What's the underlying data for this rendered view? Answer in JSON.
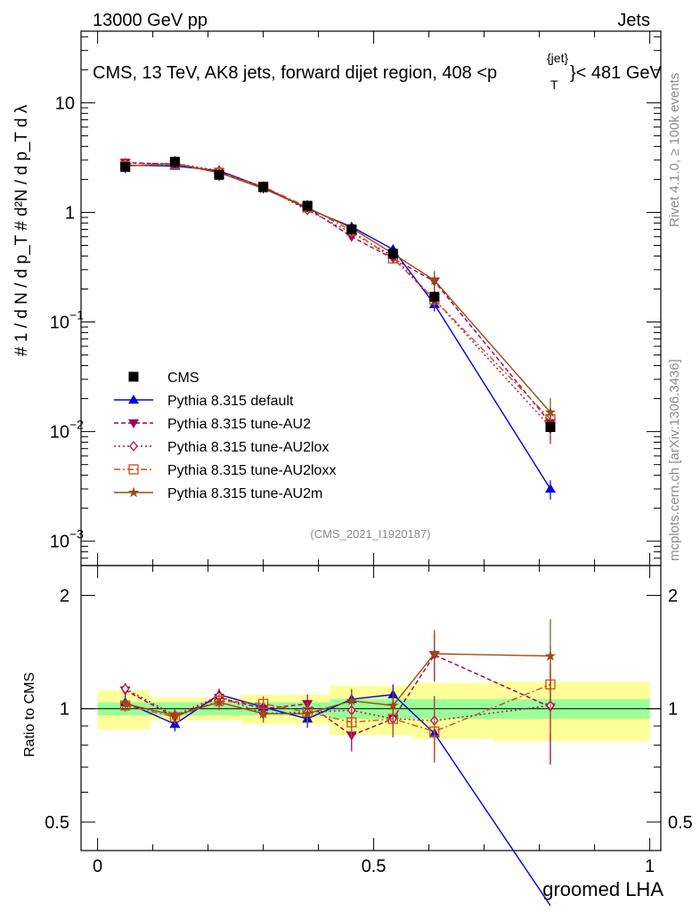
{
  "header": {
    "left": "13000 GeV pp",
    "right": "Jets"
  },
  "plot_title": "CMS, 13 TeV, AK8 jets, forward dijet region, 408 <p",
  "plot_title_sup": "{jet}",
  "plot_title_sub": "T",
  "plot_title_end": "}< 481 GeV",
  "side_right_top": "Rivet 4.1.0, ≥ 100k events",
  "side_right_bottom": "mcplots.cern.ch [arXiv:1306.3436]",
  "watermark": "(CMS_2021_I1920187)",
  "ylabel_top": "# 1 / d N / d p_T # d²N / d p_T d λ",
  "ylabel_bottom": "Ratio to CMS",
  "xlabel": "groomed LHA",
  "colors": {
    "cms": "#000000",
    "default": "#0000e0",
    "au2": "#a0005a",
    "au2lox": "#b0104a",
    "au2loxx": "#c8501e",
    "au2m": "#9c4a10",
    "band_inner": "#99ff99",
    "band_outer": "#ffff99"
  },
  "chart_data": {
    "type": "line",
    "x": [
      0.05,
      0.14,
      0.22,
      0.3,
      0.38,
      0.46,
      0.535,
      0.61,
      0.82
    ],
    "xlim": [
      -0.03,
      1.02
    ],
    "x_ticks": [
      "0",
      "0.5",
      "1"
    ],
    "main": {
      "yscale": "log",
      "ylim": [
        0.0006,
        45
      ],
      "y_ticks": [
        {
          "value": 0.001,
          "base": "10",
          "exp": "−3"
        },
        {
          "value": 0.01,
          "base": "10",
          "exp": "−2"
        },
        {
          "value": 0.1,
          "base": "10",
          "exp": "−1"
        },
        {
          "value": 1,
          "base": "1",
          "exp": ""
        },
        {
          "value": 10,
          "base": "10",
          "exp": ""
        }
      ]
    },
    "ratio": {
      "yscale": "log",
      "ylim": [
        0.42,
        2.4
      ],
      "y_ticks": [
        "0.5",
        "1",
        "2"
      ]
    },
    "legend": {
      "position": "left-middle",
      "entries": [
        {
          "key": "cms",
          "label": "CMS"
        },
        {
          "key": "default",
          "label": "Pythia 8.315 default"
        },
        {
          "key": "au2",
          "label": "Pythia 8.315 tune-AU2"
        },
        {
          "key": "au2lox",
          "label": "Pythia 8.315 tune-AU2lox"
        },
        {
          "key": "au2loxx",
          "label": "Pythia 8.315 tune-AU2loxx"
        },
        {
          "key": "au2m",
          "label": "Pythia 8.315 tune-AU2m"
        }
      ]
    },
    "cms": {
      "name": "CMS",
      "values": [
        2.6,
        2.9,
        2.2,
        1.7,
        1.15,
        0.7,
        0.42,
        0.17,
        0.011
      ],
      "band_inner": [
        0.04,
        0.04,
        0.04,
        0.04,
        0.04,
        0.06,
        0.06,
        0.06,
        0.06
      ],
      "band_outer": [
        0.08,
        0.03,
        0.03,
        0.05,
        0.05,
        0.09,
        0.09,
        0.11,
        0.12
      ]
    },
    "series": [
      {
        "key": "default",
        "name": "Pythia 8.315 default",
        "marker": "triangle-up",
        "dash": "",
        "values": [
          2.7,
          2.65,
          2.4,
          1.7,
          1.08,
          0.74,
          0.46,
          0.145,
          0.003
        ],
        "ratio": [
          1.04,
          0.91,
          1.09,
          1.01,
          0.94,
          1.06,
          1.09,
          0.86,
          0.28
        ],
        "ratio_err": [
          0.04,
          0.04,
          0.04,
          0.04,
          0.05,
          0.06,
          0.07,
          0.14,
          0.2
        ]
      },
      {
        "key": "au2",
        "name": "Pythia 8.315 tune-AU2",
        "marker": "triangle-down",
        "dash": "5,3",
        "values": [
          2.85,
          2.75,
          2.35,
          1.68,
          1.1,
          0.6,
          0.38,
          0.235,
          0.012
        ],
        "ratio": [
          1.12,
          0.95,
          1.07,
          1.0,
          1.03,
          0.85,
          0.94,
          1.39,
          1.01
        ],
        "ratio_err": [
          0.04,
          0.04,
          0.05,
          0.05,
          0.06,
          0.08,
          0.1,
          0.2,
          0.3
        ]
      },
      {
        "key": "au2lox",
        "name": "Pythia 8.315 tune-AU2lox",
        "marker": "diamond",
        "dash": "2,3",
        "values": [
          2.8,
          2.8,
          2.4,
          1.7,
          1.05,
          0.65,
          0.4,
          0.16,
          0.011
        ],
        "ratio": [
          1.13,
          0.96,
          1.08,
          0.97,
          0.98,
          0.99,
          0.94,
          0.93,
          1.02
        ],
        "ratio_err": [
          0.04,
          0.04,
          0.05,
          0.05,
          0.06,
          0.08,
          0.1,
          0.15,
          0.3
        ]
      },
      {
        "key": "au2loxx",
        "name": "Pythia 8.315 tune-AU2loxx",
        "marker": "square-open",
        "dash": "7,3,2,3",
        "values": [
          2.65,
          2.75,
          2.3,
          1.72,
          1.12,
          0.68,
          0.38,
          0.16,
          0.013
        ],
        "ratio": [
          1.02,
          0.95,
          1.05,
          1.03,
          0.98,
          0.92,
          0.94,
          0.87,
          1.16
        ],
        "ratio_err": [
          0.04,
          0.04,
          0.05,
          0.05,
          0.06,
          0.08,
          0.1,
          0.15,
          0.3
        ]
      },
      {
        "key": "au2m",
        "name": "Pythia 8.315 tune-AU2m",
        "marker": "star",
        "dash": "",
        "values": [
          2.65,
          2.8,
          2.3,
          1.65,
          1.1,
          0.72,
          0.42,
          0.24,
          0.015
        ],
        "ratio": [
          1.03,
          0.96,
          1.04,
          0.97,
          0.97,
          1.05,
          1.02,
          1.4,
          1.38
        ],
        "ratio_err": [
          0.04,
          0.04,
          0.05,
          0.05,
          0.06,
          0.08,
          0.1,
          0.22,
          0.35
        ]
      }
    ]
  }
}
